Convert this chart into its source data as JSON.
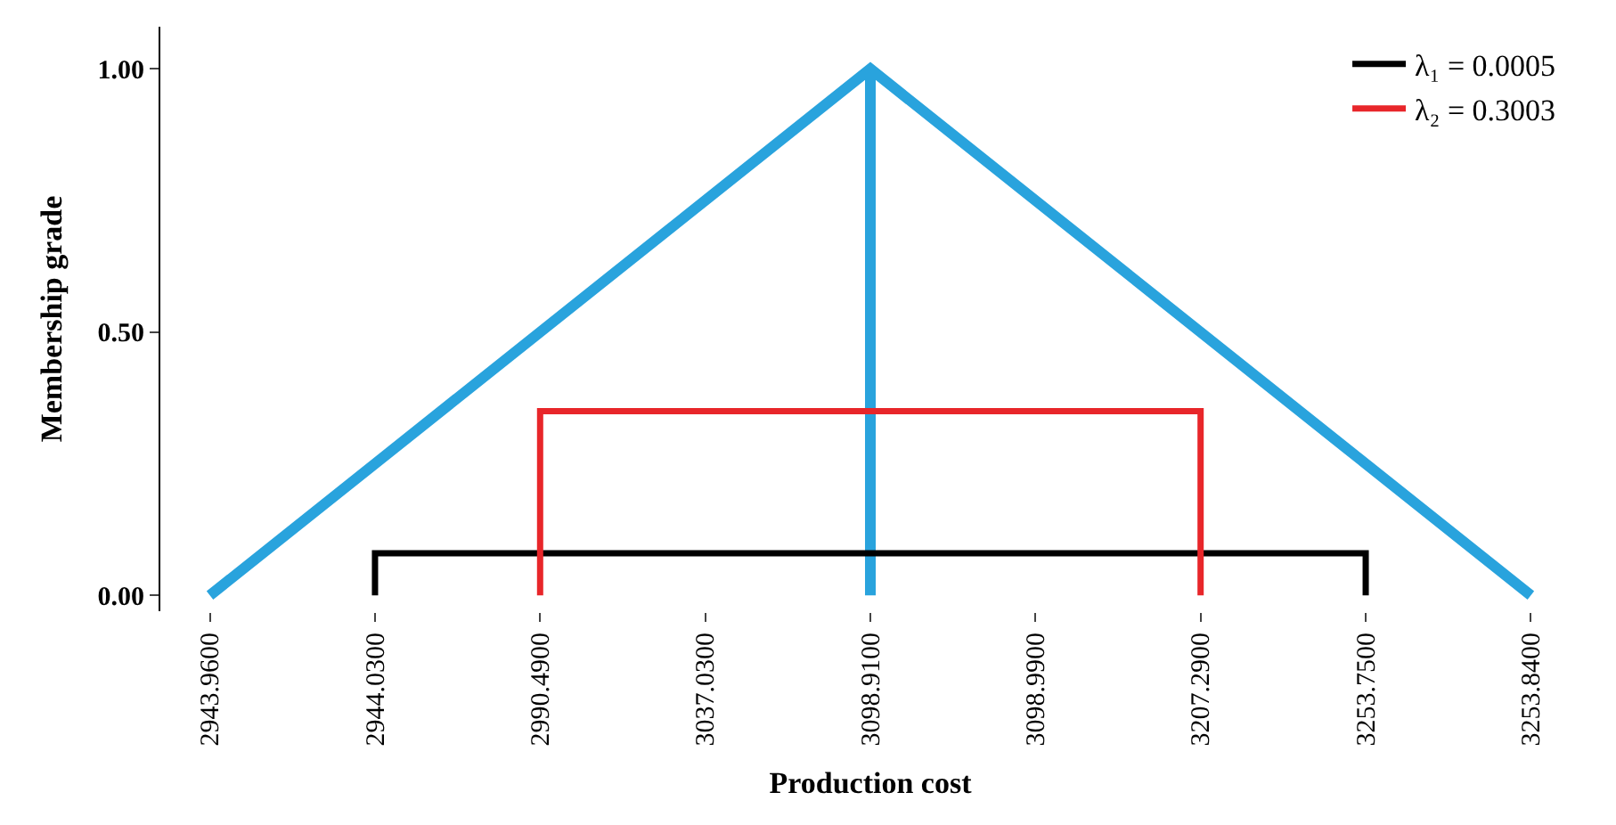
{
  "chart_data": {
    "type": "line",
    "xlabel": "Production cost",
    "ylabel": "Membership grade",
    "categories": [
      "2943.9600",
      "2944.0300",
      "2990.4900",
      "3037.0300",
      "3098.9100",
      "3098.9900",
      "3207.2900",
      "3253.7500",
      "3253.8400"
    ],
    "series": [
      {
        "color": "#29a3dd",
        "x": [
          "2943.9600",
          "3098.9100",
          "3253.8400"
        ],
        "values": [
          0,
          1,
          0
        ]
      },
      {
        "color": "#29a3dd",
        "x": [
          "3098.9100",
          "3098.9100"
        ],
        "values": [
          0,
          1
        ]
      },
      {
        "name": "λ₁ = 0.0005",
        "color": "#000000",
        "x": [
          "2944.0300",
          "2944.0300",
          "3253.7500",
          "3253.7500"
        ],
        "values": [
          0,
          0.08,
          0.08,
          0
        ]
      },
      {
        "name": "λ₂ = 0.3003",
        "color": "#e8262a",
        "x": [
          "2990.4900",
          "2990.4900",
          "3207.2900",
          "3207.2900"
        ],
        "values": [
          0,
          0.35,
          0.35,
          0
        ]
      }
    ],
    "ylim": [
      -0.03,
      1.08
    ],
    "yticks": [
      {
        "value": 0,
        "label": "0.00"
      },
      {
        "value": 0.5,
        "label": "0.50"
      },
      {
        "value": 1,
        "label": "1.00"
      }
    ],
    "legend": "top right",
    "marker": "none",
    "line_style": "solid"
  }
}
